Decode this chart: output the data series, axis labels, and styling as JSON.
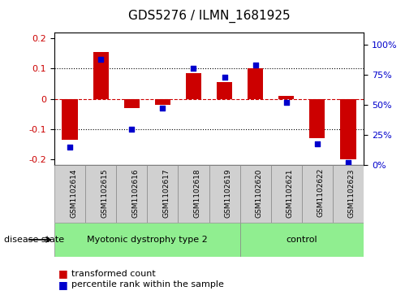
{
  "title": "GDS5276 / ILMN_1681925",
  "samples": [
    "GSM1102614",
    "GSM1102615",
    "GSM1102616",
    "GSM1102617",
    "GSM1102618",
    "GSM1102619",
    "GSM1102620",
    "GSM1102621",
    "GSM1102622",
    "GSM1102623"
  ],
  "bar_values": [
    -0.135,
    0.155,
    -0.03,
    -0.02,
    0.085,
    0.055,
    0.1,
    0.01,
    -0.13,
    -0.2
  ],
  "dot_values_pct": [
    15,
    88,
    30,
    47,
    80,
    73,
    83,
    52,
    18,
    2
  ],
  "ylim_left": [
    -0.22,
    0.22
  ],
  "ylim_right": [
    0,
    110
  ],
  "yticks_left": [
    -0.2,
    -0.1,
    0,
    0.1,
    0.2
  ],
  "yticks_right": [
    0,
    25,
    50,
    75,
    100
  ],
  "ytick_labels_right": [
    "0%",
    "25%",
    "50%",
    "75%",
    "100%"
  ],
  "bar_color": "#cc0000",
  "dot_color": "#0000cc",
  "hline_color": "#cc0000",
  "grid_color": "#000000",
  "bg_plot": "#ffffff",
  "bg_labels": "#d0d0d0",
  "bg_disease": "#90ee90",
  "disease_groups": [
    {
      "label": "Myotonic dystrophy type 2",
      "start": 0,
      "end": 5
    },
    {
      "label": "control",
      "start": 6,
      "end": 9
    }
  ],
  "legend_items": [
    {
      "color": "#cc0000",
      "label": "transformed count"
    },
    {
      "color": "#0000cc",
      "label": "percentile rank within the sample"
    }
  ],
  "disease_state_label": "disease state",
  "title_fontsize": 11,
  "tick_fontsize": 8
}
